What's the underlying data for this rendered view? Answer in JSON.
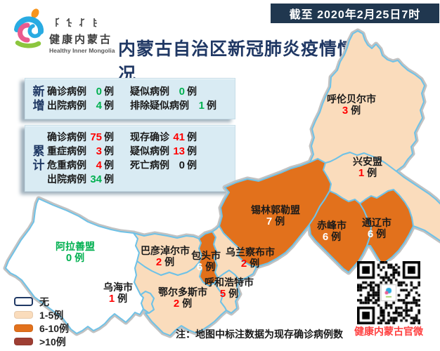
{
  "banner": {
    "text": "截至 2020年2月25日7时"
  },
  "title": "内蒙古自治区新冠肺炎疫情情况",
  "logo": {
    "cn": "健康内蒙古",
    "en": "Healthy Inner Mongolia"
  },
  "stats": {
    "new": {
      "label_chars": [
        "新",
        "增"
      ],
      "rows": [
        [
          {
            "name": "确诊病例",
            "value": "0",
            "unit": "例",
            "color": "#00B050"
          },
          {
            "name": "疑似病例",
            "value": "0",
            "unit": "例",
            "color": "#00B050"
          }
        ],
        [
          {
            "name": "出院病例",
            "value": "4",
            "unit": "例",
            "color": "#00B050"
          },
          {
            "name": "排除疑似病例",
            "value": "1",
            "unit": "例",
            "color": "#00B050"
          }
        ]
      ]
    },
    "cumulative": {
      "label_chars": [
        "累",
        "计"
      ],
      "rows": [
        [
          {
            "name": "确诊病例",
            "value": "75",
            "unit": "例",
            "color": "#FF0000"
          },
          {
            "name": "现存确诊",
            "value": "41",
            "unit": "例",
            "color": "#FF0000"
          }
        ],
        [
          {
            "name": "重症病例",
            "value": "3",
            "unit": "例",
            "color": "#FF0000"
          },
          {
            "name": "疑似病例",
            "value": "13",
            "unit": "例",
            "color": "#FF0000"
          }
        ],
        [
          {
            "name": "危重病例",
            "value": "4",
            "unit": "例",
            "color": "#FF0000"
          },
          {
            "name": "死亡病例",
            "value": "0",
            "unit": "例",
            "color": "#1A1A1A"
          }
        ],
        [
          {
            "name": "出院病例",
            "value": "34",
            "unit": "例",
            "color": "#00B050"
          }
        ]
      ]
    }
  },
  "map": {
    "note": "注：地图中标注数据为现存确诊病例数",
    "regions": [
      {
        "id": "hulunbuir",
        "name": "呼伦贝尔市",
        "cases": "3",
        "unit": "例",
        "fill": "#FADCBC",
        "name_color": "#1A1A1A",
        "num_color": "#FF0000",
        "unit_color": "#1A1A1A"
      },
      {
        "id": "xingan",
        "name": "兴安盟",
        "cases": "1",
        "unit": "例",
        "fill": "#FADCBC",
        "name_color": "#1A1A1A",
        "num_color": "#FF0000",
        "unit_color": "#1A1A1A"
      },
      {
        "id": "xilingol",
        "name": "锡林郭勒盟",
        "cases": "7",
        "unit": "例",
        "fill": "#E2711C",
        "name_color": "#1A1A1A",
        "num_color": "#FFFFFF",
        "unit_color": "#1A1A1A"
      },
      {
        "id": "chifeng",
        "name": "赤峰市",
        "cases": "6",
        "unit": "例",
        "fill": "#E2711C",
        "name_color": "#1A1A1A",
        "num_color": "#FFFFFF",
        "unit_color": "#1A1A1A"
      },
      {
        "id": "tongliao",
        "name": "通辽市",
        "cases": "6",
        "unit": "例",
        "fill": "#E2711C",
        "name_color": "#1A1A1A",
        "num_color": "#FFFFFF",
        "unit_color": "#1A1A1A"
      },
      {
        "id": "ulanqab",
        "name": "乌兰察布市",
        "cases": "2",
        "unit": "例",
        "fill": "#FADCBC",
        "name_color": "#1A1A1A",
        "num_color": "#FF0000",
        "unit_color": "#1A1A1A"
      },
      {
        "id": "baotou",
        "name": "包头市",
        "cases": "6",
        "unit": "例",
        "fill": "#E2711C",
        "name_color": "#1A1A1A",
        "num_color": "#FFFFFF",
        "unit_color": "#1A1A1A"
      },
      {
        "id": "hohhot",
        "name": "呼和浩特市",
        "cases": "5",
        "unit": "例",
        "fill": "#FADCBC",
        "name_color": "#1A1A1A",
        "num_color": "#FF0000",
        "unit_color": "#1A1A1A"
      },
      {
        "id": "bayannur",
        "name": "巴彦淖尔市",
        "cases": "2",
        "unit": "例",
        "fill": "#FADCBC",
        "name_color": "#1A1A1A",
        "num_color": "#FF0000",
        "unit_color": "#1A1A1A"
      },
      {
        "id": "ordos",
        "name": "鄂尔多斯市",
        "cases": "2",
        "unit": "例",
        "fill": "#FADCBC",
        "name_color": "#1A1A1A",
        "num_color": "#FF0000",
        "unit_color": "#1A1A1A"
      },
      {
        "id": "wuhai",
        "name": "乌海市",
        "cases": "1",
        "unit": "例",
        "fill": "#FADCBC",
        "name_color": "#1A1A1A",
        "num_color": "#FF0000",
        "unit_color": "#1A1A1A"
      },
      {
        "id": "alxa",
        "name": "阿拉善盟",
        "cases": "0",
        "unit": "例",
        "fill": "#FFFFFF",
        "name_color": "#00B050",
        "num_color": "#00B050",
        "unit_color": "#00B050"
      }
    ]
  },
  "legend": {
    "items": [
      {
        "label": "无",
        "color": "#FFFFFF",
        "border": "#1F3864"
      },
      {
        "label": "1-5例",
        "color": "#FADCBC"
      },
      {
        "label": "6-10例",
        "color": "#E2711C"
      },
      {
        "label": ">10例",
        "color": "#9E3E33"
      }
    ]
  },
  "qr": {
    "caption": "健康内蒙古官微"
  },
  "colors": {
    "navy_title": "#203864",
    "banner_bg": "#20374F",
    "panel_blue": "#D9EBF3",
    "peach": "#FADCBC",
    "orange": "#E2711C",
    "dark_red": "#9E3E33",
    "map_border_blue": "#6FC2E7",
    "map_halo_gray": "#C2C2C2",
    "number_red": "#FF0000",
    "number_green": "#00B050",
    "qr_caption_red": "#FF4040"
  }
}
